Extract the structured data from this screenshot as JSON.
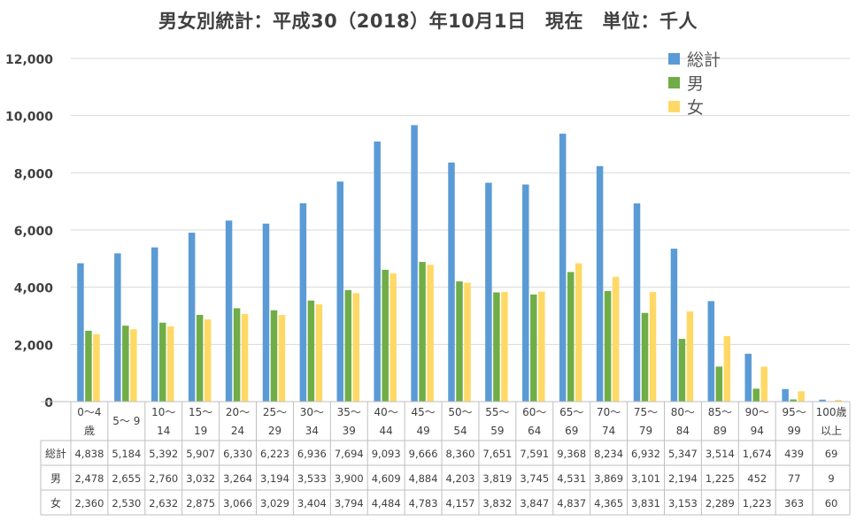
{
  "chart_data": {
    "type": "bar",
    "title": "男女別統計：平成30（2018）年10月1日　現在　単位：千人",
    "categories": [
      [
        "0～4",
        "歳"
      ],
      [
        "5～ 9",
        ""
      ],
      [
        "10～",
        "14"
      ],
      [
        "15～",
        "19"
      ],
      [
        "20～",
        "24"
      ],
      [
        "25～",
        "29"
      ],
      [
        "30～",
        "34"
      ],
      [
        "35～",
        "39"
      ],
      [
        "40～",
        "44"
      ],
      [
        "45～",
        "49"
      ],
      [
        "50～",
        "54"
      ],
      [
        "55～",
        "59"
      ],
      [
        "60～",
        "64"
      ],
      [
        "65～",
        "69"
      ],
      [
        "70～",
        "74"
      ],
      [
        "75～",
        "79"
      ],
      [
        "80～",
        "84"
      ],
      [
        "85～",
        "89"
      ],
      [
        "90～",
        "94"
      ],
      [
        "95～",
        "99"
      ],
      [
        "100歳",
        "以上"
      ]
    ],
    "ylim": [
      0,
      12000
    ],
    "yticks": [
      0,
      2000,
      4000,
      6000,
      8000,
      10000,
      12000
    ],
    "ytick_labels": [
      "0",
      "2,000",
      "4,000",
      "6,000",
      "8,000",
      "10,000",
      "12,000"
    ],
    "grid": true,
    "legend_position": "top-right",
    "series": [
      {
        "name": "総計",
        "color": "#5B9BD5",
        "values": [
          4838,
          5184,
          5392,
          5907,
          6330,
          6223,
          6936,
          7694,
          9093,
          9666,
          8360,
          7651,
          7591,
          9368,
          8234,
          6932,
          5347,
          3514,
          1674,
          439,
          69
        ],
        "labels": [
          "4,838",
          "5,184",
          "5,392",
          "5,907",
          "6,330",
          "6,223",
          "6,936",
          "7,694",
          "9,093",
          "9,666",
          "8,360",
          "7,651",
          "7,591",
          "9,368",
          "8,234",
          "6,932",
          "5,347",
          "3,514",
          "1,674",
          "439",
          "69"
        ]
      },
      {
        "name": "男",
        "color": "#70AD47",
        "values": [
          2478,
          2655,
          2760,
          3032,
          3264,
          3194,
          3533,
          3900,
          4609,
          4884,
          4203,
          3819,
          3745,
          4531,
          3869,
          3101,
          2194,
          1225,
          452,
          77,
          9
        ],
        "labels": [
          "2,478",
          "2,655",
          "2,760",
          "3,032",
          "3,264",
          "3,194",
          "3,533",
          "3,900",
          "4,609",
          "4,884",
          "4,203",
          "3,819",
          "3,745",
          "4,531",
          "3,869",
          "3,101",
          "2,194",
          "1,225",
          "452",
          "77",
          "9"
        ]
      },
      {
        "name": "女",
        "color": "#FFD966",
        "values": [
          2360,
          2530,
          2632,
          2875,
          3066,
          3029,
          3404,
          3794,
          4484,
          4783,
          4157,
          3832,
          3847,
          4837,
          4365,
          3831,
          3153,
          2289,
          1223,
          363,
          60
        ],
        "labels": [
          "2,360",
          "2,530",
          "2,632",
          "2,875",
          "3,066",
          "3,029",
          "3,404",
          "3,794",
          "4,484",
          "4,783",
          "4,157",
          "3,832",
          "3,847",
          "4,837",
          "4,365",
          "3,831",
          "3,153",
          "2,289",
          "1,223",
          "363",
          "60"
        ]
      }
    ]
  }
}
